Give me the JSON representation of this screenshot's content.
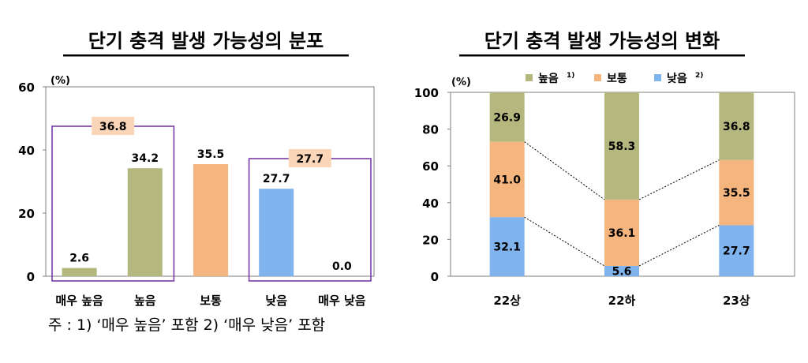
{
  "note": "주 : 1) ‘매우 높음’ 포함   2) ‘매우 낮음’ 포함",
  "colors": {
    "high": "#b5b87e",
    "medium": "#f4b57e",
    "low": "#7fb4ee",
    "box": "#7a3aa8",
    "callout": "#fbd5b7"
  },
  "chart_data": [
    {
      "type": "bar",
      "title": "단기 충격 발생 가능성의 분포",
      "unit": "(%)",
      "ylim": [
        0,
        60
      ],
      "yticks": [
        0,
        20,
        40,
        60
      ],
      "categories": [
        "매우 높음",
        "높음",
        "보통",
        "낮음",
        "매우 낮음"
      ],
      "values": [
        2.6,
        34.2,
        35.5,
        27.7,
        0.0
      ],
      "value_labels": [
        "2.6",
        "34.2",
        "35.5",
        "27.7",
        "0.0"
      ],
      "bar_colors": [
        "#b5b87e",
        "#b5b87e",
        "#f4b57e",
        "#7fb4ee",
        "#7fb4ee"
      ],
      "group_totals": [
        {
          "label": "36.8",
          "covers": [
            "매우 높음",
            "높음"
          ]
        },
        {
          "label": "27.7",
          "covers": [
            "낮음",
            "매우 낮음"
          ]
        }
      ]
    },
    {
      "type": "bar",
      "stacked": true,
      "title": "단기 충격 발생 가능성의 변화",
      "unit": "(%)",
      "ylim": [
        0,
        100
      ],
      "yticks": [
        0,
        20,
        40,
        60,
        80,
        100
      ],
      "categories": [
        "22상",
        "22하",
        "23상"
      ],
      "legend": [
        "높음",
        "보통",
        "낮음"
      ],
      "legend_notes": [
        "1)",
        "",
        "2)"
      ],
      "legend_position": "top",
      "series": [
        {
          "name": "낮음",
          "color": "#7fb4ee",
          "values": [
            32.1,
            5.6,
            27.7
          ],
          "labels": [
            "32.1",
            "5.6",
            "27.7"
          ]
        },
        {
          "name": "보통",
          "color": "#f4b57e",
          "values": [
            41.0,
            36.1,
            35.5
          ],
          "labels": [
            "41.0",
            "36.1",
            "35.5"
          ]
        },
        {
          "name": "높음",
          "color": "#b5b87e",
          "values": [
            26.9,
            58.3,
            36.8
          ],
          "labels": [
            "26.9",
            "58.3",
            "36.8"
          ]
        }
      ]
    }
  ]
}
